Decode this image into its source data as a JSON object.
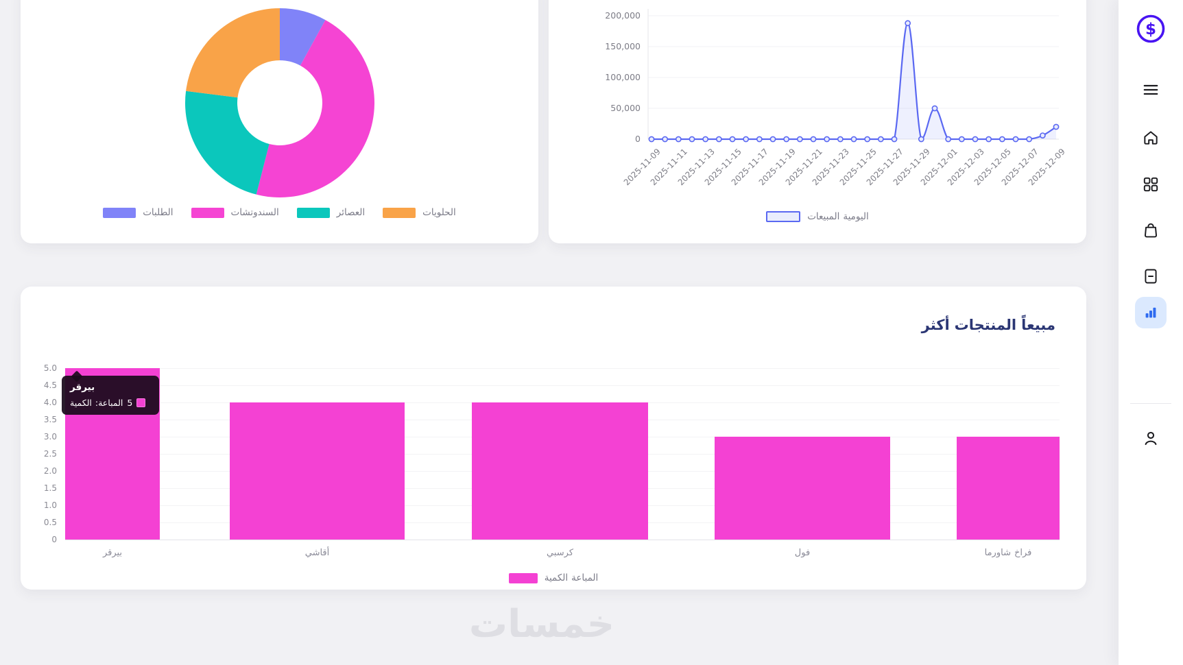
{
  "watermark": "خمسات",
  "sidebar": {
    "icons": [
      "dollar-logo",
      "menu",
      "home",
      "overview-grid",
      "orders-bag",
      "invoices-document",
      "stats-chart",
      "profile-person"
    ],
    "active_icon": "stats-chart",
    "logo_color": "#4814f2",
    "active_bg": "#dbe9fe",
    "active_icon_color": "#2e6bf0"
  },
  "donut": {
    "legend": [
      {
        "label": "الطلبات",
        "color": "#8083f8"
      },
      {
        "label": "السندوتشات",
        "color": "#f544d3"
      },
      {
        "label": "العصائر",
        "color": "#0bc7bc"
      },
      {
        "label": "الحلويات",
        "color": "#f9a348"
      }
    ]
  },
  "line": {
    "legend_label": "المبيعات اليومية",
    "legend_fill": "#e9edfd",
    "legend_border": "#5a68f2"
  },
  "bar": {
    "title": "أكثر المنتجات مبيعاً",
    "legend_label": "الكمية المباعة",
    "color": "#f441d3",
    "tooltip": {
      "title": "بيرقر",
      "label": "الكمية المباعة:",
      "value": "5"
    }
  },
  "chart_data": [
    {
      "id": "category-donut",
      "type": "pie",
      "subtype": "donut",
      "labels": [
        "الطلبات",
        "السندوتشات",
        "العصائر",
        "الحلويات"
      ],
      "values": [
        8,
        46,
        23,
        23
      ],
      "colors": [
        "#8083f8",
        "#f544d3",
        "#0bc7bc",
        "#f9a348"
      ],
      "hole_ratio": 0.45,
      "legend_position": "bottom"
    },
    {
      "id": "daily-sales-line",
      "type": "line",
      "title": "",
      "series": [
        {
          "name": "المبيعات اليومية",
          "color": "#5a68f2",
          "fill": "rgba(90,104,242,0.10)"
        }
      ],
      "x": [
        "2025-11-09",
        "2025-11-10",
        "2025-11-11",
        "2025-11-12",
        "2025-11-13",
        "2025-11-14",
        "2025-11-15",
        "2025-11-16",
        "2025-11-17",
        "2025-11-18",
        "2025-11-19",
        "2025-11-20",
        "2025-11-21",
        "2025-11-22",
        "2025-11-23",
        "2025-11-24",
        "2025-11-25",
        "2025-11-26",
        "2025-11-27",
        "2025-11-28",
        "2025-11-29",
        "2025-11-30",
        "2025-12-01",
        "2025-12-02",
        "2025-12-03",
        "2025-12-04",
        "2025-12-05",
        "2025-12-06",
        "2025-12-07",
        "2025-12-08",
        "2025-12-09"
      ],
      "values": [
        0,
        0,
        0,
        0,
        0,
        0,
        0,
        0,
        0,
        0,
        0,
        0,
        0,
        0,
        0,
        0,
        0,
        0,
        0,
        188000,
        0,
        50000,
        0,
        0,
        0,
        0,
        0,
        0,
        0,
        6000,
        20000
      ],
      "x_tick_labels": [
        "2025-11-09",
        "2025-11-11",
        "2025-11-13",
        "2025-11-15",
        "2025-11-17",
        "2025-11-19",
        "2025-11-21",
        "2025-11-23",
        "2025-11-25",
        "2025-11-27",
        "2025-11-29",
        "2025-12-01",
        "2025-12-03",
        "2025-12-05",
        "2025-12-07",
        "2025-12-09"
      ],
      "ylim": [
        0,
        200000
      ],
      "y_ticks": [
        0,
        50000,
        100000,
        150000,
        200000
      ],
      "y_tick_labels": [
        "0",
        "50,000",
        "100,000",
        "150,000",
        "200,000"
      ],
      "grid": true,
      "legend_position": "bottom"
    },
    {
      "id": "top-products-bar",
      "type": "bar",
      "title": "أكثر المنتجات مبيعاً",
      "categories": [
        "بيرقر",
        "أقاشي",
        "كرسبي",
        "فول",
        "شاورما فراخ"
      ],
      "values": [
        5,
        4,
        4,
        3,
        3
      ],
      "series_name": "الكمية المباعة",
      "bar_color": "#f441d3",
      "ylim": [
        0,
        5
      ],
      "y_ticks": [
        0,
        0.5,
        1,
        1.5,
        2,
        2.5,
        3,
        3.5,
        4,
        4.5,
        5
      ],
      "y_tick_labels": [
        "0",
        "0.5",
        "1.0",
        "1.5",
        "2.0",
        "2.5",
        "3.0",
        "3.5",
        "4.0",
        "4.5",
        "5.0"
      ],
      "grid": true,
      "legend_position": "bottom",
      "tooltip": {
        "category": "بيرقر",
        "label": "الكمية المباعة",
        "value": 5
      }
    }
  ]
}
